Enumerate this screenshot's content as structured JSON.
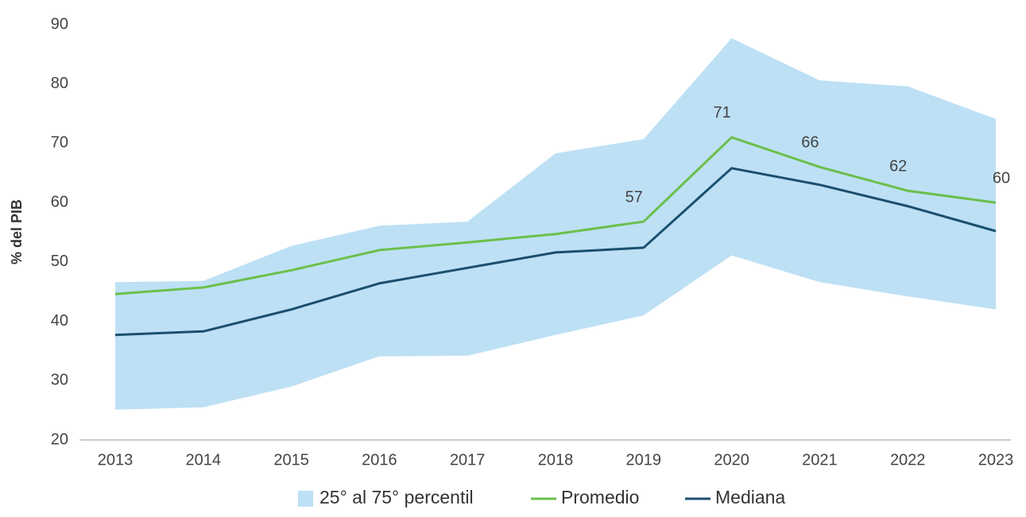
{
  "chart_data": {
    "type": "line",
    "y_label": "% del PIB",
    "categories": [
      "2013",
      "2014",
      "2015",
      "2016",
      "2017",
      "2018",
      "2019",
      "2020",
      "2021",
      "2022",
      "2023"
    ],
    "ylim": [
      20,
      90
    ],
    "yticks": [
      20,
      30,
      40,
      50,
      60,
      70,
      80,
      90
    ],
    "grid": false,
    "series": [
      {
        "name": "25° al 75° percentil",
        "kind": "band",
        "color": "#bde0f5",
        "low": [
          25.1,
          25.5,
          29.0,
          34.1,
          34.2,
          37.7,
          41.0,
          51.1,
          46.6,
          44.2,
          42.0
        ],
        "high": [
          46.6,
          46.8,
          52.7,
          56.1,
          56.8,
          68.3,
          70.7,
          87.7,
          80.6,
          79.6,
          74.1
        ]
      },
      {
        "name": "Promedio",
        "kind": "line",
        "color": "#6cbf4b",
        "values": [
          44.6,
          45.7,
          48.6,
          52.0,
          53.3,
          54.7,
          56.8,
          71,
          66,
          62,
          60
        ],
        "value_labels": [
          null,
          null,
          null,
          null,
          null,
          null,
          "57",
          "71",
          "66",
          "62",
          "60"
        ]
      },
      {
        "name": "Mediana",
        "kind": "line",
        "color": "#1a4f6e",
        "values": [
          37.7,
          38.3,
          42.0,
          46.4,
          49.0,
          51.6,
          52.4,
          65.8,
          63.0,
          59.4,
          55.2
        ]
      }
    ]
  }
}
